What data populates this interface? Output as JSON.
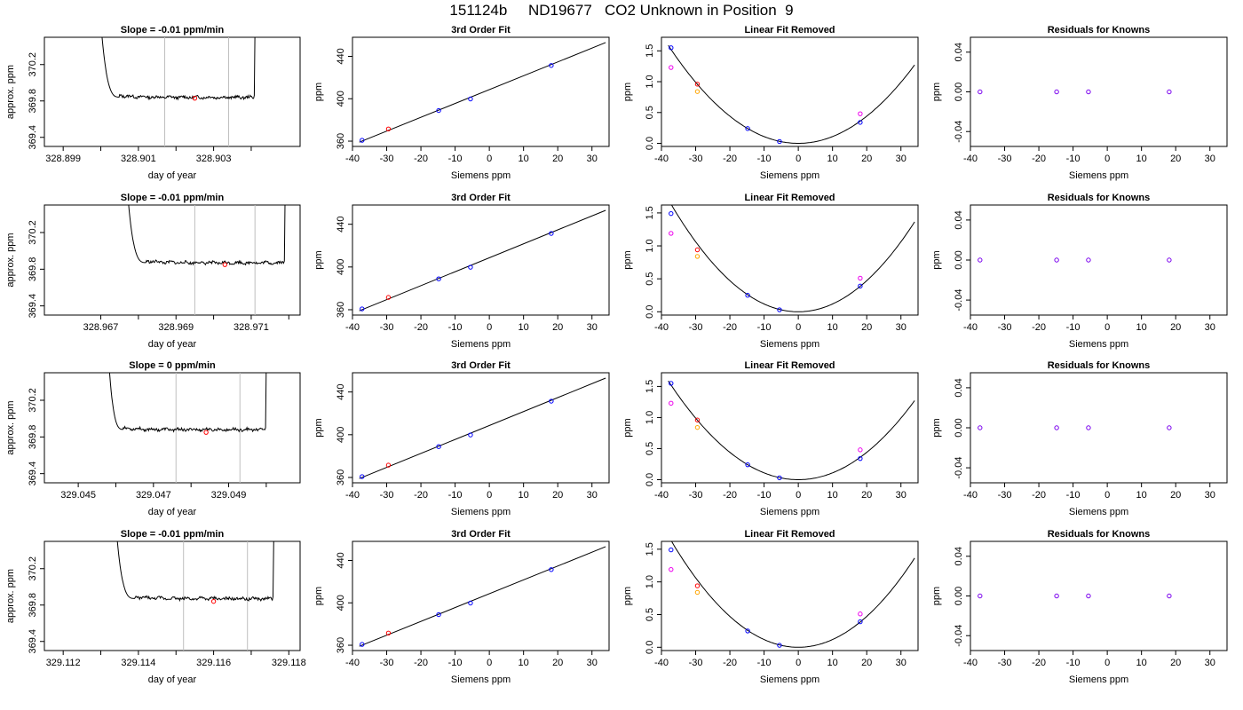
{
  "page_title": "151124b     ND19677   CO2 Unknown in Position  9",
  "chart_data": [
    {
      "type": "line",
      "row": 0,
      "title": "Slope =  -0.01  ppm/min",
      "xlabel": "day of year",
      "ylabel": "approx. ppm",
      "xlim": [
        328.8985,
        328.9053
      ],
      "ylim": [
        369.3,
        370.5
      ],
      "xticks": [
        {
          "v": 328.899,
          "l": "328.899"
        },
        {
          "v": 328.901,
          "l": "328.901"
        },
        {
          "v": 328.903,
          "l": "328.903"
        }
      ],
      "xticks_minor": [
        328.9,
        328.902,
        328.904
      ],
      "yticks": [
        {
          "v": 369.4,
          "l": "369.4"
        },
        {
          "v": 369.8,
          "l": "369.8"
        },
        {
          "v": 370.2,
          "l": "370.2"
        }
      ],
      "vlines": [
        328.9017,
        328.9034
      ],
      "start": 328.9,
      "end": 328.9041,
      "settle": 328.9005,
      "level": 369.84,
      "point": [
        328.9025,
        369.83
      ]
    },
    {
      "type": "scatter",
      "row": 0,
      "title": "3rd Order Fit",
      "xlabel": "Siemens ppm",
      "ylabel": "ppm",
      "xlim": [
        -40,
        35
      ],
      "ylim": [
        355,
        458
      ],
      "xticks": [
        -40,
        -30,
        -20,
        -10,
        0,
        10,
        20,
        30
      ],
      "yticks": [
        360,
        400,
        440
      ],
      "line": [
        [
          -38,
          359
        ],
        [
          34,
          453
        ]
      ],
      "points": [
        {
          "x": -37.2,
          "y": 360.8,
          "c": "blue"
        },
        {
          "x": -29.5,
          "y": 371.5,
          "c": "red"
        },
        {
          "x": -14.8,
          "y": 388.9,
          "c": "blue"
        },
        {
          "x": -5.5,
          "y": 399.8,
          "c": "blue"
        },
        {
          "x": 18.1,
          "y": 431.4,
          "c": "blue"
        }
      ]
    },
    {
      "type": "scatter",
      "row": 0,
      "title": "Linear Fit Removed",
      "xlabel": "Siemens ppm",
      "ylabel": "ppm",
      "xlim": [
        -40,
        35
      ],
      "ylim": [
        -0.05,
        1.72
      ],
      "xticks": [
        -40,
        -30,
        -20,
        -10,
        0,
        10,
        20,
        30
      ],
      "yticks": [
        0.0,
        0.5,
        1.0,
        1.5
      ],
      "curve": [
        0.0011,
        0.0,
        0.0
      ],
      "points": [
        {
          "x": -37.2,
          "y": 1.55,
          "c": "blue"
        },
        {
          "x": -37.2,
          "y": 1.23,
          "c": "magenta"
        },
        {
          "x": -29.5,
          "y": 0.96,
          "c": "red"
        },
        {
          "x": -29.5,
          "y": 0.84,
          "c": "orange"
        },
        {
          "x": -14.8,
          "y": 0.24,
          "c": "blue"
        },
        {
          "x": -5.5,
          "y": 0.03,
          "c": "blue"
        },
        {
          "x": 18.1,
          "y": 0.34,
          "c": "blue"
        },
        {
          "x": 18.1,
          "y": 0.48,
          "c": "magenta"
        }
      ]
    },
    {
      "type": "scatter",
      "row": 0,
      "title": "Residuals for Knowns",
      "xlabel": "Siemens ppm",
      "ylabel": "ppm",
      "xlim": [
        -40,
        35
      ],
      "ylim": [
        -0.055,
        0.055
      ],
      "xticks": [
        -40,
        -30,
        -20,
        -10,
        0,
        10,
        20,
        30
      ],
      "yticks": [
        -0.04,
        0.0,
        0.04
      ],
      "points": [
        {
          "x": -37.2,
          "y": 0.0,
          "c": "purple"
        },
        {
          "x": -14.8,
          "y": 0.0,
          "c": "purple"
        },
        {
          "x": -5.5,
          "y": 0.0,
          "c": "purple"
        },
        {
          "x": 18.1,
          "y": 0.0,
          "c": "purple"
        }
      ]
    },
    {
      "type": "line",
      "row": 1,
      "title": "Slope =  -0.01  ppm/min",
      "xlabel": "day of year",
      "ylabel": "approx. ppm",
      "xlim": [
        328.9655,
        328.9723
      ],
      "ylim": [
        369.3,
        370.5
      ],
      "xticks": [
        {
          "v": 328.967,
          "l": "328.967"
        },
        {
          "v": 328.969,
          "l": "328.969"
        },
        {
          "v": 328.971,
          "l": "328.971"
        }
      ],
      "xticks_minor": [
        328.968,
        328.97,
        328.972
      ],
      "yticks": [
        {
          "v": 369.4,
          "l": "369.4"
        },
        {
          "v": 369.8,
          "l": "369.8"
        },
        {
          "v": 370.2,
          "l": "370.2"
        }
      ],
      "vlines": [
        328.9695,
        328.9711
      ],
      "start": 328.9677,
      "end": 328.9719,
      "settle": 328.9682,
      "level": 369.87,
      "point": [
        328.9703,
        369.85
      ]
    },
    {
      "type": "scatter",
      "row": 1,
      "title": "3rd Order Fit",
      "xlabel": "Siemens ppm",
      "ylabel": "ppm",
      "xlim": [
        -40,
        35
      ],
      "ylim": [
        355,
        458
      ],
      "xticks": [
        -40,
        -30,
        -20,
        -10,
        0,
        10,
        20,
        30
      ],
      "yticks": [
        360,
        400,
        440
      ],
      "line": [
        [
          -38,
          359
        ],
        [
          34,
          453
        ]
      ],
      "points": [
        {
          "x": -37.2,
          "y": 360.8,
          "c": "blue"
        },
        {
          "x": -29.5,
          "y": 371.5,
          "c": "red"
        },
        {
          "x": -14.8,
          "y": 388.9,
          "c": "blue"
        },
        {
          "x": -5.5,
          "y": 399.8,
          "c": "blue"
        },
        {
          "x": 18.1,
          "y": 431.4,
          "c": "blue"
        }
      ]
    },
    {
      "type": "scatter",
      "row": 1,
      "title": "Linear Fit Removed",
      "xlabel": "Siemens ppm",
      "ylabel": "ppm",
      "xlim": [
        -40,
        35
      ],
      "ylim": [
        -0.05,
        1.62
      ],
      "xticks": [
        -40,
        -30,
        -20,
        -10,
        0,
        10,
        20,
        30
      ],
      "yticks": [
        0.0,
        0.5,
        1.0,
        1.5
      ],
      "curve": [
        0.00118,
        0.0,
        0.0
      ],
      "points": [
        {
          "x": -37.2,
          "y": 1.49,
          "c": "blue"
        },
        {
          "x": -37.2,
          "y": 1.19,
          "c": "magenta"
        },
        {
          "x": -29.5,
          "y": 0.94,
          "c": "red"
        },
        {
          "x": -29.5,
          "y": 0.84,
          "c": "orange"
        },
        {
          "x": -14.8,
          "y": 0.25,
          "c": "blue"
        },
        {
          "x": -5.5,
          "y": 0.03,
          "c": "blue"
        },
        {
          "x": 18.1,
          "y": 0.39,
          "c": "blue"
        },
        {
          "x": 18.1,
          "y": 0.51,
          "c": "magenta"
        }
      ]
    },
    {
      "type": "scatter",
      "row": 1,
      "title": "Residuals for Knowns",
      "xlabel": "Siemens ppm",
      "ylabel": "ppm",
      "xlim": [
        -40,
        35
      ],
      "ylim": [
        -0.055,
        0.055
      ],
      "xticks": [
        -40,
        -30,
        -20,
        -10,
        0,
        10,
        20,
        30
      ],
      "yticks": [
        -0.04,
        0.0,
        0.04
      ],
      "points": [
        {
          "x": -37.2,
          "y": 0.0,
          "c": "purple"
        },
        {
          "x": -14.8,
          "y": 0.0,
          "c": "purple"
        },
        {
          "x": -5.5,
          "y": 0.0,
          "c": "purple"
        },
        {
          "x": 18.1,
          "y": 0.0,
          "c": "purple"
        }
      ]
    },
    {
      "type": "line",
      "row": 2,
      "title": "Slope =  0  ppm/min",
      "xlabel": "day of year",
      "ylabel": "approx. ppm",
      "xlim": [
        329.0441,
        329.0509
      ],
      "ylim": [
        369.3,
        370.5
      ],
      "xticks": [
        {
          "v": 329.045,
          "l": "329.045"
        },
        {
          "v": 329.047,
          "l": "329.047"
        },
        {
          "v": 329.049,
          "l": "329.049"
        }
      ],
      "xticks_minor": [
        329.046,
        329.048,
        329.05
      ],
      "yticks": [
        {
          "v": 369.4,
          "l": "369.4"
        },
        {
          "v": 369.8,
          "l": "369.8"
        },
        {
          "v": 370.2,
          "l": "370.2"
        }
      ],
      "vlines": [
        329.0476,
        329.0493
      ],
      "start": 329.0458,
      "end": 329.05,
      "settle": 329.0462,
      "level": 369.88,
      "point": [
        329.0484,
        369.85
      ]
    },
    {
      "type": "scatter",
      "row": 2,
      "title": "3rd Order Fit",
      "xlabel": "Siemens ppm",
      "ylabel": "ppm",
      "xlim": [
        -40,
        35
      ],
      "ylim": [
        355,
        458
      ],
      "xticks": [
        -40,
        -30,
        -20,
        -10,
        0,
        10,
        20,
        30
      ],
      "yticks": [
        360,
        400,
        440
      ],
      "line": [
        [
          -38,
          359
        ],
        [
          34,
          453
        ]
      ],
      "points": [
        {
          "x": -37.2,
          "y": 360.8,
          "c": "blue"
        },
        {
          "x": -29.5,
          "y": 371.5,
          "c": "red"
        },
        {
          "x": -14.8,
          "y": 388.9,
          "c": "blue"
        },
        {
          "x": -5.5,
          "y": 399.8,
          "c": "blue"
        },
        {
          "x": 18.1,
          "y": 431.4,
          "c": "blue"
        }
      ]
    },
    {
      "type": "scatter",
      "row": 2,
      "title": "Linear Fit Removed",
      "xlabel": "Siemens ppm",
      "ylabel": "ppm",
      "xlim": [
        -40,
        35
      ],
      "ylim": [
        -0.05,
        1.72
      ],
      "xticks": [
        -40,
        -30,
        -20,
        -10,
        0,
        10,
        20,
        30
      ],
      "yticks": [
        0.0,
        0.5,
        1.0,
        1.5
      ],
      "curve": [
        0.0011,
        0.0,
        0.0
      ],
      "points": [
        {
          "x": -37.2,
          "y": 1.55,
          "c": "blue"
        },
        {
          "x": -37.2,
          "y": 1.23,
          "c": "magenta"
        },
        {
          "x": -29.5,
          "y": 0.96,
          "c": "red"
        },
        {
          "x": -29.5,
          "y": 0.84,
          "c": "orange"
        },
        {
          "x": -14.8,
          "y": 0.24,
          "c": "blue"
        },
        {
          "x": -5.5,
          "y": 0.03,
          "c": "blue"
        },
        {
          "x": 18.1,
          "y": 0.34,
          "c": "blue"
        },
        {
          "x": 18.1,
          "y": 0.48,
          "c": "magenta"
        }
      ]
    },
    {
      "type": "scatter",
      "row": 2,
      "title": "Residuals for Knowns",
      "xlabel": "Siemens ppm",
      "ylabel": "ppm",
      "xlim": [
        -40,
        35
      ],
      "ylim": [
        -0.055,
        0.055
      ],
      "xticks": [
        -40,
        -30,
        -20,
        -10,
        0,
        10,
        20,
        30
      ],
      "yticks": [
        -0.04,
        0.0,
        0.04
      ],
      "points": [
        {
          "x": -37.2,
          "y": 0.0,
          "c": "purple"
        },
        {
          "x": -14.8,
          "y": 0.0,
          "c": "purple"
        },
        {
          "x": -5.5,
          "y": 0.0,
          "c": "purple"
        },
        {
          "x": 18.1,
          "y": 0.0,
          "c": "purple"
        }
      ]
    },
    {
      "type": "line",
      "row": 3,
      "title": "Slope =  -0.01  ppm/min",
      "xlabel": "day of year",
      "ylabel": "approx. ppm",
      "xlim": [
        329.1115,
        329.1183
      ],
      "ylim": [
        369.3,
        370.5
      ],
      "xticks": [
        {
          "v": 329.112,
          "l": "329.112"
        },
        {
          "v": 329.114,
          "l": "329.114"
        },
        {
          "v": 329.116,
          "l": "329.116"
        },
        {
          "v": 329.118,
          "l": "329.118"
        }
      ],
      "xticks_minor": [
        329.113,
        329.115,
        329.117
      ],
      "yticks": [
        {
          "v": 369.4,
          "l": "369.4"
        },
        {
          "v": 369.8,
          "l": "369.8"
        },
        {
          "v": 370.2,
          "l": "370.2"
        }
      ],
      "vlines": [
        329.1152,
        329.1169
      ],
      "start": 329.1134,
      "end": 329.1176,
      "settle": 329.1139,
      "level": 369.87,
      "point": [
        329.116,
        369.84
      ]
    },
    {
      "type": "scatter",
      "row": 3,
      "title": "3rd Order Fit",
      "xlabel": "Siemens ppm",
      "ylabel": "ppm",
      "xlim": [
        -40,
        35
      ],
      "ylim": [
        355,
        458
      ],
      "xticks": [
        -40,
        -30,
        -20,
        -10,
        0,
        10,
        20,
        30
      ],
      "yticks": [
        360,
        400,
        440
      ],
      "line": [
        [
          -38,
          359
        ],
        [
          34,
          453
        ]
      ],
      "points": [
        {
          "x": -37.2,
          "y": 360.8,
          "c": "blue"
        },
        {
          "x": -29.5,
          "y": 371.5,
          "c": "red"
        },
        {
          "x": -14.8,
          "y": 388.9,
          "c": "blue"
        },
        {
          "x": -5.5,
          "y": 399.8,
          "c": "blue"
        },
        {
          "x": 18.1,
          "y": 431.4,
          "c": "blue"
        }
      ]
    },
    {
      "type": "scatter",
      "row": 3,
      "title": "Linear Fit Removed",
      "xlabel": "Siemens ppm",
      "ylabel": "ppm",
      "xlim": [
        -40,
        35
      ],
      "ylim": [
        -0.05,
        1.62
      ],
      "xticks": [
        -40,
        -30,
        -20,
        -10,
        0,
        10,
        20,
        30
      ],
      "yticks": [
        0.0,
        0.5,
        1.0,
        1.5
      ],
      "curve": [
        0.00118,
        0.0,
        0.0
      ],
      "points": [
        {
          "x": -37.2,
          "y": 1.49,
          "c": "blue"
        },
        {
          "x": -37.2,
          "y": 1.19,
          "c": "magenta"
        },
        {
          "x": -29.5,
          "y": 0.94,
          "c": "red"
        },
        {
          "x": -29.5,
          "y": 0.84,
          "c": "orange"
        },
        {
          "x": -14.8,
          "y": 0.25,
          "c": "blue"
        },
        {
          "x": -5.5,
          "y": 0.03,
          "c": "blue"
        },
        {
          "x": 18.1,
          "y": 0.39,
          "c": "blue"
        },
        {
          "x": 18.1,
          "y": 0.51,
          "c": "magenta"
        }
      ]
    },
    {
      "type": "scatter",
      "row": 3,
      "title": "Residuals for Knowns",
      "xlabel": "Siemens ppm",
      "ylabel": "ppm",
      "xlim": [
        -40,
        35
      ],
      "ylim": [
        -0.055,
        0.055
      ],
      "xticks": [
        -40,
        -30,
        -20,
        -10,
        0,
        10,
        20,
        30
      ],
      "yticks": [
        -0.04,
        0.0,
        0.04
      ],
      "points": [
        {
          "x": -37.2,
          "y": 0.0,
          "c": "purple"
        },
        {
          "x": -14.8,
          "y": 0.0,
          "c": "purple"
        },
        {
          "x": -5.5,
          "y": 0.0,
          "c": "purple"
        },
        {
          "x": 18.1,
          "y": 0.0,
          "c": "purple"
        }
      ]
    }
  ],
  "colors": {
    "blue": "#0000ff",
    "red": "#ff0000",
    "magenta": "#ee00ee",
    "orange": "#ffa500",
    "purple": "#7a00ee",
    "vline": "#bebebe",
    "axis": "#000000"
  }
}
